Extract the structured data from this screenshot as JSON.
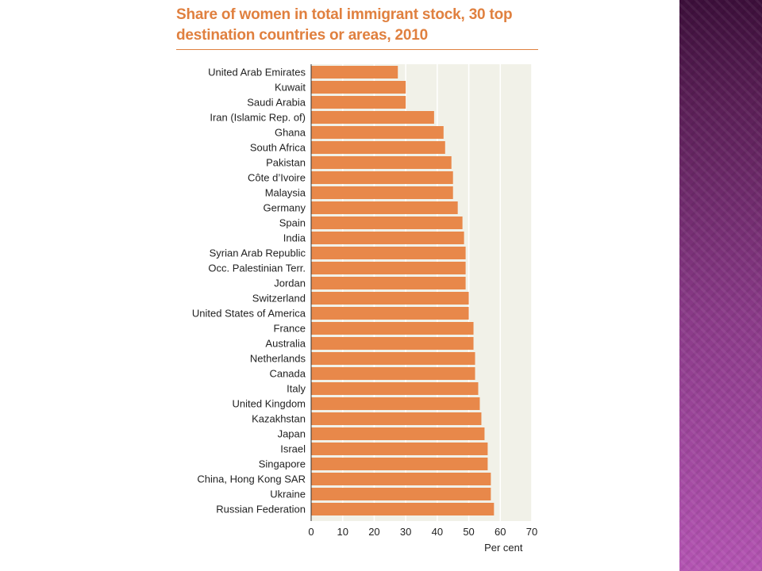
{
  "slide": {
    "accent_color": "#e0803f",
    "side_band_color": "#8a3a88"
  },
  "chart_data": {
    "type": "bar",
    "orientation": "horizontal",
    "title": "Share of women in total immigrant stock, 30 top destination countries or areas, 2010",
    "xlabel": "Per cent",
    "ylabel": "",
    "xlim": [
      0,
      70
    ],
    "xticks": [
      0,
      10,
      20,
      30,
      40,
      50,
      60,
      70
    ],
    "grid": true,
    "bar_color": "#e8884a",
    "plot_background": "#f1f1e8",
    "categories": [
      "United Arab Emirates",
      "Kuwait",
      "Saudi Arabia",
      "Iran (Islamic Rep. of)",
      "Ghana",
      "South Africa",
      "Pakistan",
      "Côte d’Ivoire",
      "Malaysia",
      "Germany",
      "Spain",
      "India",
      "Syrian Arab Republic",
      "Occ. Palestinian Terr.",
      "Jordan",
      "Switzerland",
      "United States of America",
      "France",
      "Australia",
      "Netherlands",
      "Canada",
      "Italy",
      "United Kingdom",
      "Kazakhstan",
      "Japan",
      "Israel",
      "Singapore",
      "China, Hong Kong SAR",
      "Ukraine",
      "Russian Federation"
    ],
    "values": [
      27.5,
      30,
      30,
      39,
      42,
      42.5,
      44.5,
      45,
      45,
      46.5,
      48,
      48.5,
      49,
      49,
      49,
      50,
      50,
      51.5,
      51.5,
      52,
      52,
      53,
      53.5,
      54,
      55,
      56,
      56,
      57,
      57,
      58
    ]
  }
}
